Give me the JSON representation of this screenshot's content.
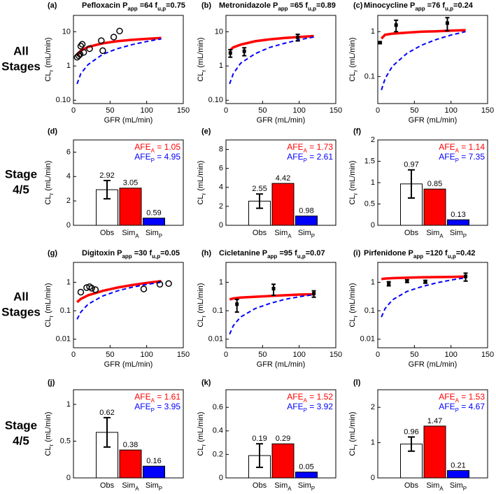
{
  "row_labels": [
    [
      "All",
      "Stages"
    ],
    [
      "Stage",
      "4/5"
    ],
    [
      "All",
      "Stages"
    ],
    [
      "Stage",
      "4/5"
    ]
  ],
  "chart_data": [
    {
      "type": "line",
      "panel": "(a)",
      "title": [
        "Pefloxacin P",
        "app",
        " =64 f",
        "u,p",
        "=0.75"
      ],
      "xlabel": "GFR (mL/min)",
      "ylabel": [
        "CL",
        "r",
        " (mL/min)"
      ],
      "xlim": [
        0,
        150
      ],
      "xticks": [
        0,
        50,
        100,
        150
      ],
      "ylim": [
        0.08,
        30
      ],
      "yticks": [
        {
          "value": 0.1,
          "label": "0.10"
        },
        1,
        10
      ],
      "log_y": true,
      "x": [
        5,
        10,
        20,
        40,
        60,
        80,
        100,
        120
      ],
      "series": [
        {
          "color": "#ff0000",
          "dash": false,
          "values": [
            2.0,
            2.8,
            3.6,
            4.6,
            5.3,
            5.8,
            6.2,
            6.6
          ]
        },
        {
          "color": "#0000ff",
          "dash": true,
          "values": [
            0.3,
            0.6,
            1.1,
            2.2,
            3.2,
            4.2,
            5.2,
            6.2
          ]
        }
      ],
      "observed": {
        "marker": "circle",
        "x": [
          5,
          7,
          9,
          10,
          12,
          14,
          22,
          38,
          40,
          55,
          63
        ],
        "values": [
          1.8,
          2.0,
          2.2,
          3.8,
          4.3,
          2.5,
          3.2,
          5.5,
          2.8,
          7,
          10.5
        ]
      }
    },
    {
      "type": "line",
      "panel": "(b)",
      "title": [
        "Metronidazole P",
        "app",
        " =65 f",
        "u,p",
        "=0.89"
      ],
      "xlabel": "GFR (mL/min)",
      "ylabel": [
        "CL",
        "r",
        " (mL/min)"
      ],
      "xlim": [
        0,
        150
      ],
      "xticks": [
        0,
        50,
        100,
        150
      ],
      "ylim": [
        0.08,
        30
      ],
      "yticks": [
        {
          "value": 0.1,
          "label": "0.10"
        },
        1,
        10
      ],
      "log_y": true,
      "x": [
        5,
        10,
        20,
        40,
        60,
        80,
        100,
        120
      ],
      "series": [
        {
          "color": "#ff0000",
          "dash": false,
          "values": [
            2.8,
            3.5,
            4.2,
            5.3,
            6,
            6.6,
            7,
            7.5
          ]
        },
        {
          "color": "#0000ff",
          "dash": true,
          "values": [
            0.3,
            0.6,
            1.2,
            2.3,
            3.5,
            4.6,
            5.8,
            7
          ]
        }
      ],
      "observed": {
        "marker": "errorbar",
        "x": [
          6,
          25,
          98
        ],
        "values": [
          2.4,
          2.7,
          6.9
        ],
        "errors": [
          0.6,
          0.7,
          1.5
        ]
      }
    },
    {
      "type": "line",
      "panel": "(c)",
      "title": [
        "Minocycline P",
        "app",
        " =76 f",
        "u,p",
        "=0.24"
      ],
      "xlabel": "GFR (mL/min)",
      "ylabel": [
        "CL",
        "r",
        " (mL/min)"
      ],
      "xlim": [
        0,
        150
      ],
      "xticks": [
        0,
        50,
        100,
        150
      ],
      "ylim": [
        0.025,
        2.3
      ],
      "yticks": [
        0.1,
        1
      ],
      "log_y": true,
      "x": [
        5,
        10,
        20,
        40,
        60,
        80,
        100,
        120
      ],
      "series": [
        {
          "color": "#ff0000",
          "dash": false,
          "values": [
            0.7,
            0.85,
            0.9,
            0.95,
            1.0,
            1.02,
            1.05,
            1.08
          ]
        },
        {
          "color": "#0000ff",
          "dash": true,
          "values": [
            0.05,
            0.09,
            0.17,
            0.33,
            0.5,
            0.67,
            0.84,
            1.0
          ]
        }
      ],
      "observed": {
        "marker": "errorbar",
        "x": [
          3,
          25,
          95
        ],
        "values": [
          0.57,
          1.4,
          1.55
        ],
        "errors": [
          0.03,
          0.4,
          0.5
        ]
      }
    },
    {
      "type": "bar",
      "panel": "(d)",
      "ylabel": [
        "CL",
        "r",
        " (mL/min)"
      ],
      "categories": [
        [
          "Obs"
        ],
        [
          "Sim",
          "A"
        ],
        [
          "Sim",
          "P"
        ]
      ],
      "values": [
        2.92,
        3.05,
        0.59
      ],
      "errors": [
        0.75,
        null,
        null
      ],
      "colors": [
        "#ffffff",
        "#ff0000",
        "#0000ff"
      ],
      "ylim": [
        0,
        7
      ],
      "yticks": [
        0,
        2,
        4,
        6
      ],
      "annotations": [
        {
          "color": "#ff0000",
          "text": [
            "AFE",
            "A",
            " = 1.05"
          ]
        },
        {
          "color": "#0000ff",
          "text": [
            "AFE",
            "P",
            " = 4.95"
          ]
        }
      ]
    },
    {
      "type": "bar",
      "panel": "(e)",
      "ylabel": [
        "CL",
        "r",
        " (mL/min)"
      ],
      "categories": [
        [
          "Obs"
        ],
        [
          "Sim",
          "A"
        ],
        [
          "Sim",
          "P"
        ]
      ],
      "values": [
        2.55,
        4.42,
        0.98
      ],
      "errors": [
        0.75,
        null,
        null
      ],
      "colors": [
        "#ffffff",
        "#ff0000",
        "#0000ff"
      ],
      "ylim": [
        0,
        9
      ],
      "yticks": [
        0,
        2,
        4,
        6,
        8
      ],
      "annotations": [
        {
          "color": "#ff0000",
          "text": [
            "AFE",
            "A",
            " = 1.73"
          ]
        },
        {
          "color": "#0000ff",
          "text": [
            "AFE",
            "P",
            " = 2.61"
          ]
        }
      ]
    },
    {
      "type": "bar",
      "panel": "(f)",
      "ylabel": [
        "CL",
        "r",
        " (mL/min)"
      ],
      "categories": [
        [
          "Obs"
        ],
        [
          "Sim",
          "A"
        ],
        [
          "Sim",
          "P"
        ]
      ],
      "values": [
        0.97,
        0.85,
        0.13
      ],
      "errors": [
        0.33,
        null,
        null
      ],
      "colors": [
        "#ffffff",
        "#ff0000",
        "#0000ff"
      ],
      "ylim": [
        0,
        2
      ],
      "yticks": [
        0,
        0.5,
        1,
        1.5,
        2
      ],
      "annotations": [
        {
          "color": "#ff0000",
          "text": [
            "AFE",
            "A",
            " = 1.14"
          ]
        },
        {
          "color": "#0000ff",
          "text": [
            "AFE",
            "P",
            " = 7.35"
          ]
        }
      ]
    },
    {
      "type": "line",
      "panel": "(g)",
      "title": [
        "Digitoxin P",
        "app",
        " =30 f",
        "u,p",
        "=0.05"
      ],
      "xlabel": "GFR (mL/min)",
      "ylabel": [
        "CL",
        "r",
        " (mL/min)"
      ],
      "xlim": [
        0,
        150
      ],
      "xticks": [
        0,
        50,
        100,
        150
      ],
      "ylim": [
        0.005,
        5
      ],
      "yticks": [
        0.01,
        0.1,
        1
      ],
      "log_y": true,
      "x": [
        5,
        10,
        20,
        40,
        60,
        80,
        100,
        120
      ],
      "series": [
        {
          "color": "#ff0000",
          "dash": false,
          "values": [
            0.2,
            0.26,
            0.35,
            0.5,
            0.65,
            0.8,
            0.95,
            1.1
          ]
        },
        {
          "color": "#0000ff",
          "dash": true,
          "values": [
            0.05,
            0.09,
            0.17,
            0.33,
            0.5,
            0.67,
            0.84,
            1.0
          ]
        }
      ],
      "observed": {
        "marker": "circle",
        "x": [
          10,
          18,
          22,
          25,
          30,
          96,
          118,
          130
        ],
        "values": [
          0.45,
          0.65,
          0.7,
          0.62,
          0.55,
          0.58,
          0.85,
          0.9
        ]
      }
    },
    {
      "type": "line",
      "panel": "(h)",
      "title": [
        "Cicletanine P",
        "app",
        " =95 f",
        "u,p",
        "=0.07"
      ],
      "xlabel": "GFR (mL/min)",
      "ylabel": [
        "CL",
        "r",
        " (mL/min)"
      ],
      "xlim": [
        0,
        150
      ],
      "xticks": [
        0,
        50,
        100,
        150
      ],
      "ylim": [
        0.005,
        5
      ],
      "yticks": [
        0.01,
        0.1,
        1
      ],
      "log_y": true,
      "x": [
        5,
        10,
        20,
        40,
        60,
        80,
        100,
        120
      ],
      "series": [
        {
          "color": "#ff0000",
          "dash": false,
          "values": [
            0.25,
            0.27,
            0.29,
            0.31,
            0.33,
            0.35,
            0.37,
            0.38
          ]
        },
        {
          "color": "#0000ff",
          "dash": true,
          "values": [
            0.015,
            0.03,
            0.06,
            0.12,
            0.18,
            0.25,
            0.31,
            0.37
          ]
        }
      ],
      "observed": {
        "marker": "errorbar",
        "x": [
          15,
          65,
          120
        ],
        "values": [
          0.17,
          0.6,
          0.4
        ],
        "errors": [
          0.08,
          0.25,
          0.1
        ]
      }
    },
    {
      "type": "line",
      "panel": "(i)",
      "title": [
        "Pirfenidone P",
        "app",
        " =120 f",
        "u,p",
        "=0.42"
      ],
      "xlabel": "GFR (mL/min)",
      "ylabel": [
        "CL",
        "r",
        " (mL/min)"
      ],
      "xlim": [
        0,
        150
      ],
      "xticks": [
        0,
        50,
        100,
        150
      ],
      "ylim": [
        0.005,
        5
      ],
      "yticks": [
        0.01,
        0.1,
        1
      ],
      "log_y": true,
      "x": [
        5,
        10,
        20,
        40,
        60,
        80,
        100,
        120
      ],
      "series": [
        {
          "color": "#ff0000",
          "dash": false,
          "values": [
            1.3,
            1.35,
            1.4,
            1.45,
            1.5,
            1.52,
            1.55,
            1.58
          ]
        },
        {
          "color": "#0000ff",
          "dash": true,
          "values": [
            0.06,
            0.12,
            0.24,
            0.48,
            0.7,
            0.95,
            1.2,
            1.45
          ]
        }
      ],
      "observed": {
        "marker": "errorbar",
        "x": [
          15,
          40,
          65,
          120
        ],
        "values": [
          0.9,
          1.1,
          1.05,
          1.6
        ],
        "errors": [
          0.15,
          0.12,
          0.12,
          0.5
        ]
      }
    },
    {
      "type": "bar",
      "panel": "(j)",
      "ylabel": [
        "CL",
        "r",
        " (mL/min)"
      ],
      "categories": [
        [
          "Obs"
        ],
        [
          "Sim",
          "A"
        ],
        [
          "Sim",
          "P"
        ]
      ],
      "values": [
        0.62,
        0.38,
        0.16
      ],
      "errors": [
        0.2,
        null,
        null
      ],
      "colors": [
        "#ffffff",
        "#ff0000",
        "#0000ff"
      ],
      "ylim": [
        0,
        1.2
      ],
      "yticks": [
        0,
        0.5,
        1
      ],
      "annotations": [
        {
          "color": "#ff0000",
          "text": [
            "AFE",
            "A",
            " = 1.61"
          ]
        },
        {
          "color": "#0000ff",
          "text": [
            "AFE",
            "P",
            " = 3.95"
          ]
        }
      ]
    },
    {
      "type": "bar",
      "panel": "(k)",
      "ylabel": [
        "CL",
        "r",
        " (mL/min)"
      ],
      "categories": [
        [
          "Obs"
        ],
        [
          "Sim",
          "A"
        ],
        [
          "Sim",
          "P"
        ]
      ],
      "values": [
        0.19,
        0.29,
        0.05
      ],
      "errors": [
        0.1,
        null,
        null
      ],
      "colors": [
        "#ffffff",
        "#ff0000",
        "#0000ff"
      ],
      "ylim": [
        0,
        0.75
      ],
      "yticks": [
        0,
        0.2,
        0.4,
        0.6
      ],
      "annotations": [
        {
          "color": "#ff0000",
          "text": [
            "AFE",
            "A",
            " = 1.52"
          ]
        },
        {
          "color": "#0000ff",
          "text": [
            "AFE",
            "P",
            " = 3.92"
          ]
        }
      ]
    },
    {
      "type": "bar",
      "panel": "(l)",
      "ylabel": [
        "CL",
        "r",
        " (mL/min)"
      ],
      "categories": [
        [
          "Obs"
        ],
        [
          "Sim",
          "A"
        ],
        [
          "Sim",
          "P"
        ]
      ],
      "values": [
        0.96,
        1.47,
        0.21
      ],
      "errors": [
        0.2,
        null,
        null
      ],
      "colors": [
        "#ffffff",
        "#ff0000",
        "#0000ff"
      ],
      "ylim": [
        0,
        2.5
      ],
      "yticks": [
        0,
        1,
        2
      ],
      "annotations": [
        {
          "color": "#ff0000",
          "text": [
            "AFE",
            "A",
            " = 1.53"
          ]
        },
        {
          "color": "#0000ff",
          "text": [
            "AFE",
            "P",
            " = 4.67"
          ]
        }
      ]
    }
  ]
}
